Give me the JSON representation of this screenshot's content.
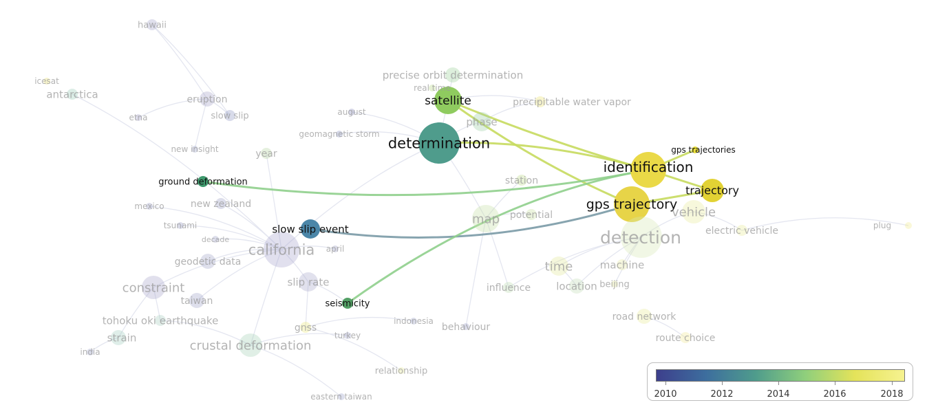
{
  "map": {
    "colors": {
      "edge_faint": "#e4e6f0",
      "highlight_edge_a": "#c7da5e",
      "highlight_edge_b": "#8fcf8c",
      "highlight_edge_c": "#7a9aa6"
    },
    "items": [
      {
        "id": "hawaii",
        "label": "hawaii",
        "color": "#a5a6cc",
        "weight": 2,
        "faded": true,
        "bold": false
      },
      {
        "id": "icesat",
        "label": "icesat",
        "color": "#e8e070",
        "weight": 1,
        "faded": true,
        "bold": false
      },
      {
        "id": "antarctica",
        "label": "antarctica",
        "color": "#9ccab8",
        "weight": 2,
        "faded": true,
        "bold": false
      },
      {
        "id": "eruption",
        "label": "eruption",
        "color": "#a7a4c9",
        "weight": 3,
        "faded": true,
        "bold": false
      },
      {
        "id": "etna",
        "label": "etna",
        "color": "#a2a0c8",
        "weight": 1,
        "faded": true,
        "bold": false
      },
      {
        "id": "slow_slip",
        "label": "slow slip",
        "color": "#8f98c2",
        "weight": 2,
        "faded": true,
        "bold": false
      },
      {
        "id": "august",
        "label": "august",
        "color": "#8b8fc0",
        "weight": 1,
        "faded": true,
        "bold": false
      },
      {
        "id": "geomagnetic_storm",
        "label": "geomagnetic storm",
        "color": "#8a91c0",
        "weight": 1,
        "faded": true,
        "bold": false
      },
      {
        "id": "precise_orbit",
        "label": "precise orbit determination",
        "color": "#9ed19b",
        "weight": 3,
        "faded": true,
        "bold": false
      },
      {
        "id": "real_time",
        "label": "real time",
        "color": "#b8d888",
        "weight": 1,
        "faded": true,
        "bold": false
      },
      {
        "id": "satellite",
        "label": "satellite",
        "color": "#8fcb5f",
        "weight": 6,
        "faded": false,
        "bold": true
      },
      {
        "id": "precipitable",
        "label": "precipitable water vapor",
        "color": "#ece372",
        "weight": 2,
        "faded": true,
        "bold": false
      },
      {
        "id": "phase",
        "label": "phase",
        "color": "#9ecfa6",
        "weight": 4,
        "faded": true,
        "bold": false
      },
      {
        "id": "determination",
        "label": "determination",
        "color": "#4f9c8c",
        "weight": 10,
        "faded": false,
        "bold": true
      },
      {
        "id": "new_insight",
        "label": "new insight",
        "color": "#9ea2c8",
        "weight": 1,
        "faded": true,
        "bold": false
      },
      {
        "id": "year",
        "label": "year",
        "color": "#b4d4a0",
        "weight": 2,
        "faded": true,
        "bold": false
      },
      {
        "id": "ground_deformation",
        "label": "ground deformation",
        "color": "#3f9a6e",
        "weight": 2,
        "faded": false,
        "bold": true
      },
      {
        "id": "gps_trajectories",
        "label": "gps trajectories",
        "color": "#e9de3a",
        "weight": 1,
        "faded": false,
        "bold": true
      },
      {
        "id": "identification",
        "label": "identification",
        "color": "#ead947",
        "weight": 8,
        "faded": false,
        "bold": true
      },
      {
        "id": "station",
        "label": "station",
        "color": "#bcd98a",
        "weight": 2,
        "faded": true,
        "bold": false
      },
      {
        "id": "trajectory",
        "label": "trajectory",
        "color": "#e2d234",
        "weight": 5,
        "faded": false,
        "bold": true
      },
      {
        "id": "mexico",
        "label": "mexico",
        "color": "#9a9ec6",
        "weight": 1,
        "faded": true,
        "bold": false
      },
      {
        "id": "new_zealand",
        "label": "new zealand",
        "color": "#9da0c6",
        "weight": 2,
        "faded": true,
        "bold": false
      },
      {
        "id": "gps_trajectory",
        "label": "gps trajectory",
        "color": "#e7d448",
        "weight": 8,
        "faded": false,
        "bold": true
      },
      {
        "id": "vehicle",
        "label": "vehicle",
        "color": "#e9ec9a",
        "weight": 5,
        "faded": true,
        "bold": false
      },
      {
        "id": "tsunami",
        "label": "tsunami",
        "color": "#9a9dc6",
        "weight": 1,
        "faded": true,
        "bold": false
      },
      {
        "id": "slow_slip_event",
        "label": "slow slip event",
        "color": "#4b86a8",
        "weight": 4,
        "faded": false,
        "bold": true
      },
      {
        "id": "map",
        "label": "map",
        "color": "#c5dfa6",
        "weight": 6,
        "faded": true,
        "bold": false
      },
      {
        "id": "potential",
        "label": "potential",
        "color": "#c8e0a0",
        "weight": 2,
        "faded": true,
        "bold": false
      },
      {
        "id": "plug",
        "label": "plug",
        "color": "#f0ec90",
        "weight": 1,
        "faded": true,
        "bold": false
      },
      {
        "id": "decade",
        "label": "decade",
        "color": "#a0a3c8",
        "weight": 1,
        "faded": true,
        "bold": false
      },
      {
        "id": "electric_vehicle",
        "label": "electric vehicle",
        "color": "#e8ea98",
        "weight": 2,
        "faded": true,
        "bold": false
      },
      {
        "id": "detection",
        "label": "detection",
        "color": "#d6e8b4",
        "weight": 10,
        "faded": true,
        "bold": false
      },
      {
        "id": "april",
        "label": "april",
        "color": "#9ea1c6",
        "weight": 1,
        "faded": true,
        "bold": false
      },
      {
        "id": "california",
        "label": "california",
        "color": "#a9a7cd",
        "weight": 8,
        "faded": true,
        "bold": false
      },
      {
        "id": "geodetic_data",
        "label": "geodetic data",
        "color": "#a3a5c9",
        "weight": 3,
        "faded": true,
        "bold": false
      },
      {
        "id": "time",
        "label": "time",
        "color": "#e3e79a",
        "weight": 4,
        "faded": true,
        "bold": false
      },
      {
        "id": "machine",
        "label": "machine",
        "color": "#e6e8a0",
        "weight": 2,
        "faded": true,
        "bold": false
      },
      {
        "id": "slip_rate",
        "label": "slip rate",
        "color": "#a9a8cc",
        "weight": 4,
        "faded": true,
        "bold": false
      },
      {
        "id": "constraint",
        "label": "constraint",
        "color": "#a8a7cc",
        "weight": 5,
        "faded": true,
        "bold": false
      },
      {
        "id": "influence",
        "label": "influence",
        "color": "#bcdcb2",
        "weight": 2,
        "faded": true,
        "bold": false
      },
      {
        "id": "location",
        "label": "location",
        "color": "#c2deb6",
        "weight": 3,
        "faded": true,
        "bold": false
      },
      {
        "id": "beijing",
        "label": "beijing",
        "color": "#e6e898",
        "weight": 1,
        "faded": true,
        "bold": false
      },
      {
        "id": "taiwan",
        "label": "taiwan",
        "color": "#a1a2c8",
        "weight": 3,
        "faded": true,
        "bold": false
      },
      {
        "id": "seismicity",
        "label": "seismicity",
        "color": "#53a065",
        "weight": 2,
        "faded": false,
        "bold": true
      },
      {
        "id": "road_network",
        "label": "road network",
        "color": "#e8ea98",
        "weight": 3,
        "faded": true,
        "bold": false
      },
      {
        "id": "tohoku",
        "label": "tohoku oki earthquake",
        "color": "#a8cfc0",
        "weight": 2,
        "faded": true,
        "bold": false
      },
      {
        "id": "indonesia",
        "label": "indonesia",
        "color": "#9ea2c8",
        "weight": 1,
        "faded": true,
        "bold": false
      },
      {
        "id": "gnss",
        "label": "gnss",
        "color": "#ece77a",
        "weight": 2,
        "faded": true,
        "bold": false
      },
      {
        "id": "behaviour",
        "label": "behaviour",
        "color": "#9da1c8",
        "weight": 1,
        "faded": true,
        "bold": false
      },
      {
        "id": "strain",
        "label": "strain",
        "color": "#a3cec0",
        "weight": 3,
        "faded": true,
        "bold": false
      },
      {
        "id": "turkey",
        "label": "turkey",
        "color": "#9da1c8",
        "weight": 1,
        "faded": true,
        "bold": false
      },
      {
        "id": "crustal_deformation",
        "label": "crustal deformation",
        "color": "#a7d0b8",
        "weight": 5,
        "faded": true,
        "bold": false
      },
      {
        "id": "route_choice",
        "label": "route choice",
        "color": "#f0e794",
        "weight": 2,
        "faded": true,
        "bold": false
      },
      {
        "id": "india",
        "label": "india",
        "color": "#9ea2c8",
        "weight": 1,
        "faded": true,
        "bold": false
      },
      {
        "id": "relationship",
        "label": "relationship",
        "color": "#e8ec98",
        "weight": 1,
        "faded": true,
        "bold": false
      },
      {
        "id": "eastern_taiwan",
        "label": "eastern taiwan",
        "color": "#9aa0c8",
        "weight": 1,
        "faded": true,
        "bold": false
      }
    ],
    "highlighted_links": [
      {
        "from": "determination",
        "to": "identification"
      },
      {
        "from": "satellite",
        "to": "identification"
      },
      {
        "from": "satellite",
        "to": "gps_trajectory"
      },
      {
        "from": "ground_deformation",
        "to": "identification"
      },
      {
        "from": "slow_slip_event",
        "to": "gps_trajectory"
      },
      {
        "from": "seismicity",
        "to": "identification"
      },
      {
        "from": "identification",
        "to": "trajectory"
      },
      {
        "from": "identification",
        "to": "gps_trajectories"
      },
      {
        "from": "gps_trajectory",
        "to": "trajectory"
      }
    ]
  },
  "legend": {
    "ticks": [
      "2010",
      "2012",
      "2014",
      "2016",
      "2018"
    ],
    "gradient": [
      "#3d3f8c",
      "#3d6e9e",
      "#4f9c8c",
      "#8fcf7c",
      "#e4e35a",
      "#f6f290"
    ]
  }
}
